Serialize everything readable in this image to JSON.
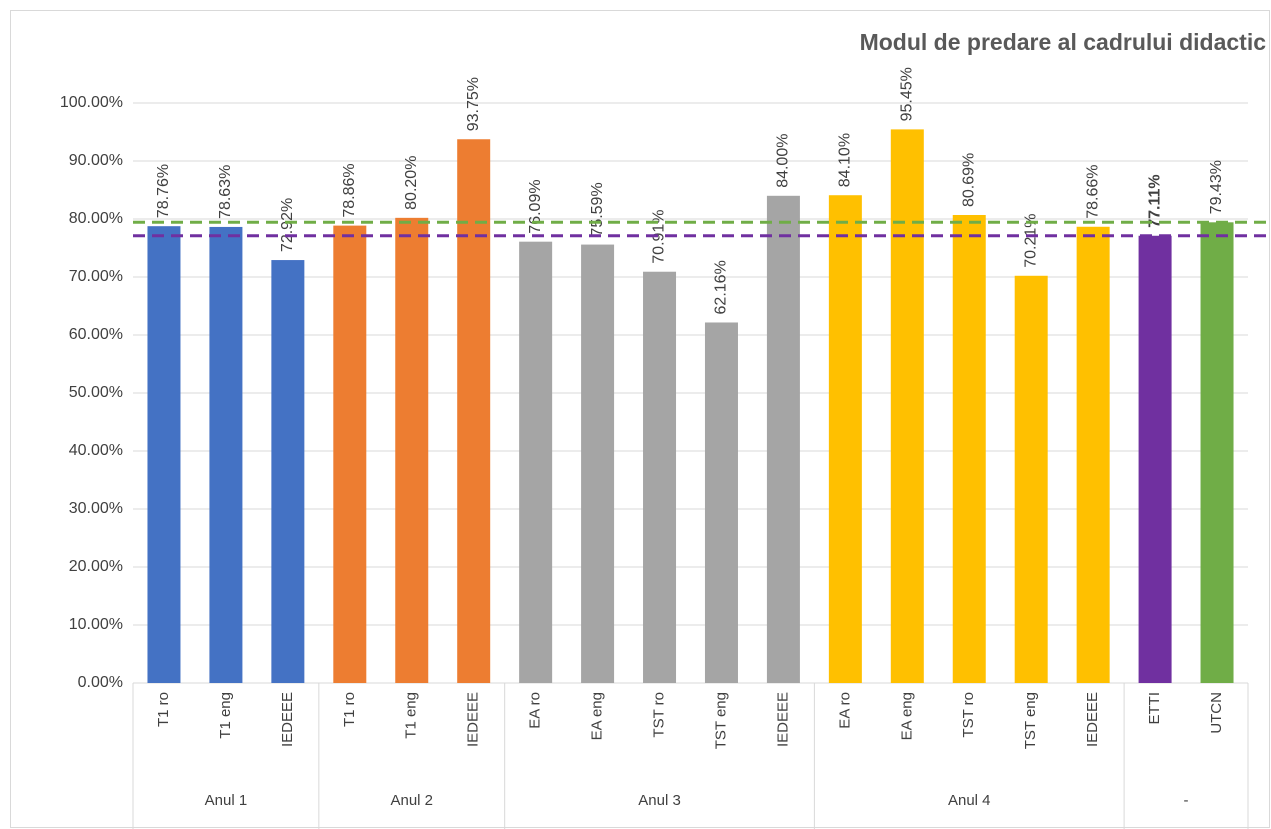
{
  "chart_data": {
    "type": "bar",
    "title": "Modul de predare al cadrului didactic",
    "groups": [
      {
        "label": "Anul 1",
        "categories": [
          "T1 ro",
          "T1 eng",
          "IEDEEE"
        ],
        "values": [
          78.76,
          78.63,
          72.92
        ],
        "value_labels": [
          "78.76%",
          "78.63%",
          "72.92%"
        ],
        "colors": [
          "#4472c4",
          "#4472c4",
          "#4472c4"
        ]
      },
      {
        "label": "Anul 2",
        "categories": [
          "T1 ro",
          "T1 eng",
          "IEDEEE"
        ],
        "values": [
          78.86,
          80.2,
          93.75
        ],
        "value_labels": [
          "78.86%",
          "80.20%",
          "93.75%"
        ],
        "colors": [
          "#ed7d31",
          "#ed7d31",
          "#ed7d31"
        ]
      },
      {
        "label": "Anul 3",
        "categories": [
          "EA ro",
          "EA eng",
          "TST ro",
          "TST eng",
          "IEDEEE"
        ],
        "values": [
          76.09,
          75.59,
          70.91,
          62.16,
          84.0
        ],
        "value_labels": [
          "76.09%",
          "75.59%",
          "70.91%",
          "62.16%",
          "84.00%"
        ],
        "colors": [
          "#a5a5a5",
          "#a5a5a5",
          "#a5a5a5",
          "#a5a5a5",
          "#a5a5a5"
        ]
      },
      {
        "label": "Anul 4",
        "categories": [
          "EA ro",
          "EA eng",
          "TST ro",
          "TST eng",
          "IEDEEE"
        ],
        "values": [
          84.1,
          95.45,
          80.69,
          70.21,
          78.66
        ],
        "value_labels": [
          "84.10%",
          "95.45%",
          "80.69%",
          "70.21%",
          "78.66%"
        ],
        "colors": [
          "#ffc000",
          "#ffc000",
          "#ffc000",
          "#ffc000",
          "#ffc000"
        ]
      },
      {
        "label": "-",
        "categories": [
          "ETTI",
          "UTCN"
        ],
        "values": [
          77.11,
          79.43
        ],
        "value_labels": [
          "77.11%",
          "79.43%"
        ],
        "colors": [
          "#7030a0",
          "#70ad47"
        ],
        "bold": [
          true,
          false
        ]
      }
    ],
    "reference_lines": [
      {
        "value": 77.11,
        "color": "#7030a0"
      },
      {
        "value": 79.43,
        "color": "#70ad47"
      }
    ],
    "ylim": [
      0,
      100
    ],
    "yticks": [
      {
        "value": 0,
        "label": "0.00%"
      },
      {
        "value": 10,
        "label": "10.00%"
      },
      {
        "value": 20,
        "label": "20.00%"
      },
      {
        "value": 30,
        "label": "30.00%"
      },
      {
        "value": 40,
        "label": "40.00%"
      },
      {
        "value": 50,
        "label": "50.00%"
      },
      {
        "value": 60,
        "label": "60.00%"
      },
      {
        "value": 70,
        "label": "70.00%"
      },
      {
        "value": 80,
        "label": "80.00%"
      },
      {
        "value": 90,
        "label": "90.00%"
      },
      {
        "value": 100,
        "label": "100.00%"
      }
    ],
    "grid": true
  }
}
